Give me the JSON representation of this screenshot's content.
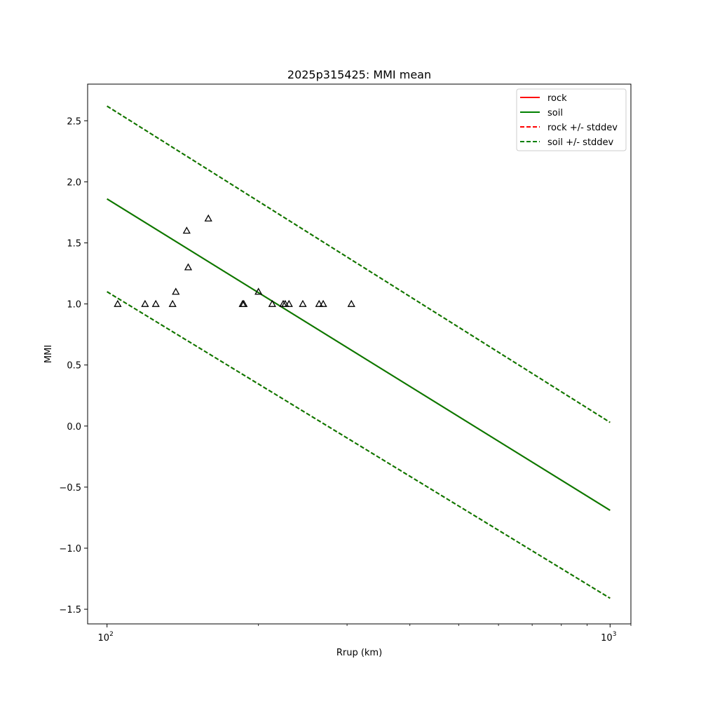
{
  "chart_data": {
    "type": "scatter",
    "title": "2025p315425: MMI mean",
    "xlabel": "Rrup (km)",
    "ylabel": "MMI",
    "xscale": "log",
    "xlim": [
      91.5,
      1100
    ],
    "ylim": [
      -1.62,
      2.8
    ],
    "x_ticks": [
      {
        "value": 100,
        "base": "10",
        "exp": "2"
      },
      {
        "value": 1000,
        "base": "10",
        "exp": "3"
      }
    ],
    "y_ticks": [
      {
        "value": -1.5,
        "label": "−1.5"
      },
      {
        "value": -1.0,
        "label": "−1.0"
      },
      {
        "value": -0.5,
        "label": "−0.5"
      },
      {
        "value": 0.0,
        "label": "0.0"
      },
      {
        "value": 0.5,
        "label": "0.5"
      },
      {
        "value": 1.0,
        "label": "1.0"
      },
      {
        "value": 1.5,
        "label": "1.5"
      },
      {
        "value": 2.0,
        "label": "2.0"
      },
      {
        "value": 2.5,
        "label": "2.5"
      }
    ],
    "legend_position": "top-right",
    "series": [
      {
        "name": "rock",
        "style": "solid",
        "color": "#ff0000",
        "x": [
          100,
          1000
        ],
        "y": [
          1.86,
          -0.69
        ]
      },
      {
        "name": "soil",
        "style": "solid",
        "color": "#008000",
        "x": [
          100,
          1000
        ],
        "y": [
          1.86,
          -0.69
        ]
      },
      {
        "name": "rock +/- stddev",
        "style": "dashed",
        "color": "#ff0000",
        "x": [
          100,
          1000
        ],
        "y_upper": [
          2.62,
          0.03
        ],
        "y_lower": [
          1.1,
          -1.41
        ]
      },
      {
        "name": "soil +/- stddev",
        "style": "dashed",
        "color": "#008000",
        "x": [
          100,
          1000
        ],
        "y_upper": [
          2.62,
          0.03
        ],
        "y_lower": [
          1.1,
          -1.41
        ]
      }
    ],
    "observations": {
      "marker": "triangle",
      "points": [
        {
          "x": 105,
          "y": 1.0
        },
        {
          "x": 119,
          "y": 1.0
        },
        {
          "x": 125,
          "y": 1.0
        },
        {
          "x": 135,
          "y": 1.0
        },
        {
          "x": 137,
          "y": 1.1
        },
        {
          "x": 144,
          "y": 1.6
        },
        {
          "x": 145,
          "y": 1.3
        },
        {
          "x": 159,
          "y": 1.7
        },
        {
          "x": 186,
          "y": 1.0
        },
        {
          "x": 187,
          "y": 1.0
        },
        {
          "x": 200,
          "y": 1.1
        },
        {
          "x": 213,
          "y": 1.0
        },
        {
          "x": 224,
          "y": 1.0
        },
        {
          "x": 226,
          "y": 1.0
        },
        {
          "x": 230,
          "y": 1.0
        },
        {
          "x": 245,
          "y": 1.0
        },
        {
          "x": 264,
          "y": 1.0
        },
        {
          "x": 269,
          "y": 1.0
        },
        {
          "x": 306,
          "y": 1.0
        }
      ]
    }
  }
}
